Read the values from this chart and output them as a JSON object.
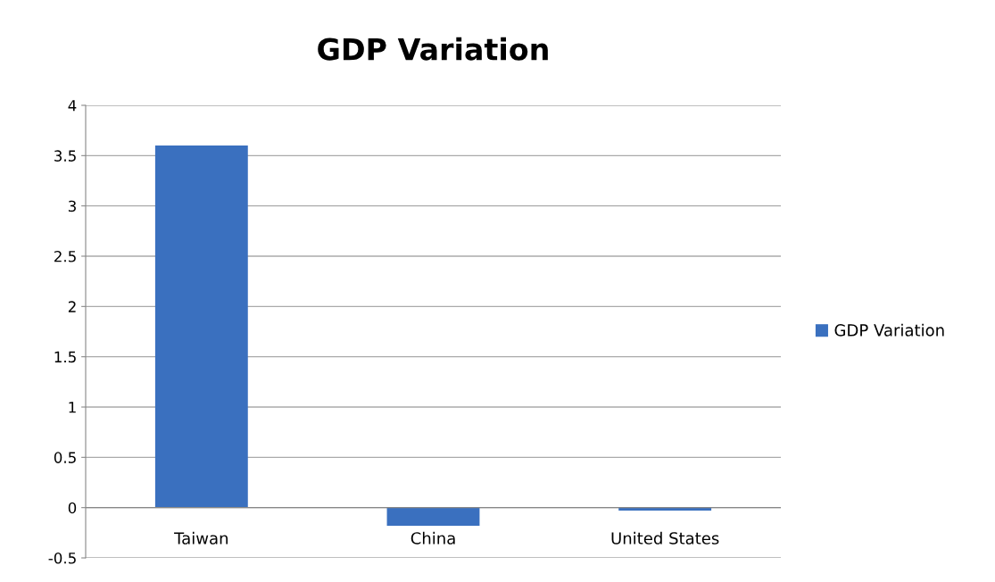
{
  "chart_data": {
    "type": "bar",
    "title": "GDP Variation",
    "categories": [
      "Taiwan",
      "China",
      "United States"
    ],
    "series": [
      {
        "name": "GDP Variation",
        "color": "#3a70bf",
        "values": [
          3.6,
          -0.18,
          -0.03
        ]
      }
    ],
    "ylim": [
      -0.5,
      4
    ],
    "yticks": [
      -0.5,
      0,
      0.5,
      1,
      1.5,
      2,
      2.5,
      3,
      3.5,
      4
    ],
    "grid": "y",
    "legend": "right"
  }
}
